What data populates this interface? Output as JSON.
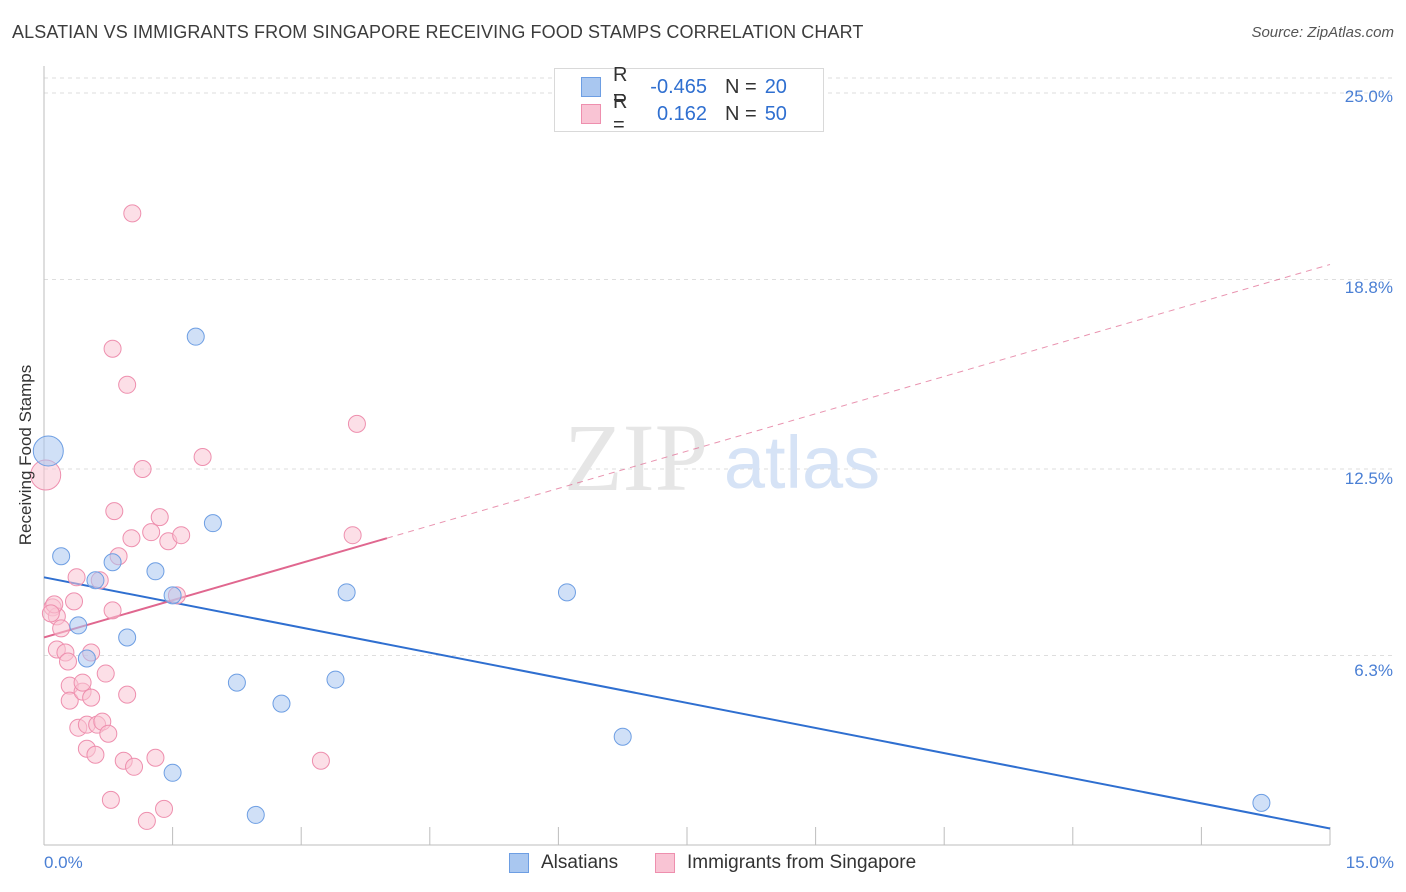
{
  "header": {
    "title": "ALSATIAN VS IMMIGRANTS FROM SINGAPORE RECEIVING FOOD STAMPS CORRELATION CHART",
    "source": "Source: ZipAtlas.com"
  },
  "watermark": {
    "zip": "ZIP",
    "atlas": "atlas"
  },
  "legend": {
    "rows": [
      {
        "r_label": "R =",
        "r_value": "-0.465",
        "n_label": "N =",
        "n_value": "20",
        "color": "#a9c7f0",
        "border": "#6d9ee3"
      },
      {
        "r_label": "R =",
        "r_value": "0.162",
        "n_label": "N =",
        "n_value": "50",
        "color": "#f9c4d4",
        "border": "#ee8fae"
      }
    ]
  },
  "bottom_legend": {
    "alsatians": "Alsatians",
    "singapore": "Immigrants from Singapore"
  },
  "chart_data": {
    "type": "scatter",
    "title": "ALSATIAN VS IMMIGRANTS FROM SINGAPORE RECEIVING FOOD STAMPS CORRELATION CHART",
    "xlabel": "",
    "ylabel": "Receiving Food Stamps",
    "xlim": [
      0,
      15
    ],
    "ylim": [
      0,
      25.5
    ],
    "x_tick_labels": [
      "0.0%",
      "15.0%"
    ],
    "y_ticks": [
      6.3,
      12.5,
      18.8,
      25.0
    ],
    "y_tick_labels": [
      "6.3%",
      "12.5%",
      "18.8%",
      "25.0%"
    ],
    "grid": true,
    "legend_position": "top-center",
    "series": [
      {
        "name": "Alsatians",
        "color": "#6d9ee3",
        "fill": "#a9c7f0",
        "line_color": "#2f6fd0",
        "points": [
          {
            "x": 0.2,
            "y": 9.6
          },
          {
            "x": 0.4,
            "y": 7.3
          },
          {
            "x": 0.6,
            "y": 8.8
          },
          {
            "x": 0.8,
            "y": 9.4
          },
          {
            "x": 0.5,
            "y": 6.2
          },
          {
            "x": 0.97,
            "y": 6.9
          },
          {
            "x": 1.3,
            "y": 9.1
          },
          {
            "x": 1.5,
            "y": 8.3
          },
          {
            "x": 1.77,
            "y": 16.9
          },
          {
            "x": 1.97,
            "y": 10.7
          },
          {
            "x": 2.25,
            "y": 5.4
          },
          {
            "x": 2.77,
            "y": 4.7
          },
          {
            "x": 3.4,
            "y": 5.5
          },
          {
            "x": 3.53,
            "y": 8.4
          },
          {
            "x": 6.1,
            "y": 8.4
          },
          {
            "x": 6.75,
            "y": 3.6
          },
          {
            "x": 1.5,
            "y": 2.4
          },
          {
            "x": 2.47,
            "y": 1.0
          },
          {
            "x": 14.2,
            "y": 1.4
          },
          {
            "x": 0.05,
            "y": 13.1
          }
        ],
        "trend": {
          "x": [
            0,
            15
          ],
          "y": [
            8.9,
            0.55
          ]
        }
      },
      {
        "name": "Immigrants from Singapore",
        "color": "#ee8fae",
        "fill": "#f9c4d4",
        "line_color": "#e0678f",
        "points": [
          {
            "x": 0.02,
            "y": 12.3
          },
          {
            "x": 0.1,
            "y": 7.9
          },
          {
            "x": 0.15,
            "y": 7.6
          },
          {
            "x": 0.2,
            "y": 7.2
          },
          {
            "x": 0.15,
            "y": 6.5
          },
          {
            "x": 0.25,
            "y": 6.4
          },
          {
            "x": 0.28,
            "y": 6.1
          },
          {
            "x": 0.3,
            "y": 5.3
          },
          {
            "x": 0.3,
            "y": 4.8
          },
          {
            "x": 0.35,
            "y": 8.1
          },
          {
            "x": 0.38,
            "y": 8.9
          },
          {
            "x": 0.45,
            "y": 5.1
          },
          {
            "x": 0.4,
            "y": 3.9
          },
          {
            "x": 0.45,
            "y": 5.4
          },
          {
            "x": 0.5,
            "y": 3.2
          },
          {
            "x": 0.5,
            "y": 4.0
          },
          {
            "x": 0.55,
            "y": 6.4
          },
          {
            "x": 0.55,
            "y": 4.9
          },
          {
            "x": 0.6,
            "y": 3.0
          },
          {
            "x": 0.62,
            "y": 4.0
          },
          {
            "x": 0.65,
            "y": 8.8
          },
          {
            "x": 0.68,
            "y": 4.1
          },
          {
            "x": 0.72,
            "y": 5.7
          },
          {
            "x": 0.75,
            "y": 3.7
          },
          {
            "x": 0.8,
            "y": 7.8
          },
          {
            "x": 0.82,
            "y": 11.1
          },
          {
            "x": 0.8,
            "y": 16.5
          },
          {
            "x": 0.78,
            "y": 1.5
          },
          {
            "x": 0.87,
            "y": 9.6
          },
          {
            "x": 0.93,
            "y": 2.8
          },
          {
            "x": 0.97,
            "y": 5.0
          },
          {
            "x": 0.97,
            "y": 15.3
          },
          {
            "x": 1.02,
            "y": 10.2
          },
          {
            "x": 1.05,
            "y": 2.6
          },
          {
            "x": 1.03,
            "y": 21.0
          },
          {
            "x": 1.15,
            "y": 12.5
          },
          {
            "x": 1.2,
            "y": 0.8
          },
          {
            "x": 1.25,
            "y": 10.4
          },
          {
            "x": 1.3,
            "y": 2.9
          },
          {
            "x": 1.35,
            "y": 10.9
          },
          {
            "x": 1.4,
            "y": 1.2
          },
          {
            "x": 1.45,
            "y": 10.1
          },
          {
            "x": 1.55,
            "y": 8.3
          },
          {
            "x": 1.6,
            "y": 10.3
          },
          {
            "x": 1.85,
            "y": 12.9
          },
          {
            "x": 3.23,
            "y": 2.8
          },
          {
            "x": 3.6,
            "y": 10.3
          },
          {
            "x": 3.65,
            "y": 14.0
          },
          {
            "x": 0.12,
            "y": 8.0
          },
          {
            "x": 0.08,
            "y": 7.7
          }
        ],
        "trend_solid": {
          "x": [
            0,
            4
          ],
          "y": [
            6.9,
            10.2
          ]
        },
        "trend_dashed": {
          "x": [
            4,
            15
          ],
          "y": [
            10.2,
            19.3
          ]
        }
      }
    ]
  }
}
